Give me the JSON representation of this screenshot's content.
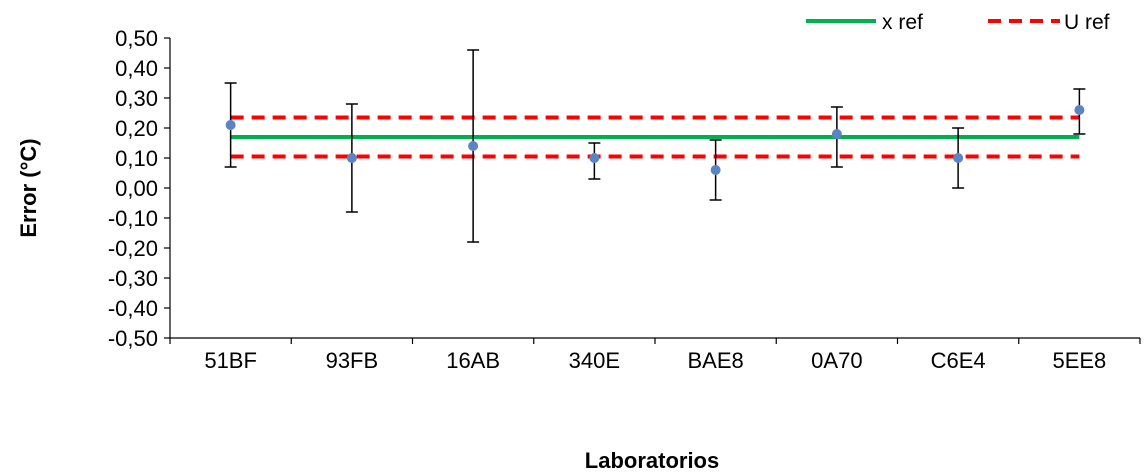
{
  "chart_data": {
    "type": "scatter",
    "title": "",
    "xlabel": "Laboratorios",
    "ylabel": "Error (°C)",
    "categories": [
      "51BF",
      "93FB",
      "16AB",
      "340E",
      "BAE8",
      "0A70",
      "C6E4",
      "5EE8"
    ],
    "ylim": [
      -0.5,
      0.5
    ],
    "yticks": [
      0.5,
      0.4,
      0.3,
      0.2,
      0.1,
      0.0,
      -0.1,
      -0.2,
      -0.3,
      -0.4,
      -0.5
    ],
    "ytick_labels": [
      "0,50",
      "0,40",
      "0,30",
      "0,20",
      "0,10",
      "0,00",
      "-0,10",
      "-0,20",
      "-0,30",
      "-0,40",
      "-0,50"
    ],
    "grid": false,
    "legend": "top-right",
    "series": [
      {
        "values": [
          0.21,
          0.1,
          0.14,
          0.1,
          0.06,
          0.18,
          0.1,
          0.26
        ],
        "err_low": [
          0.07,
          -0.08,
          -0.18,
          0.03,
          -0.04,
          0.07,
          0.0,
          0.18
        ],
        "err_high": [
          0.35,
          0.28,
          0.46,
          0.15,
          0.16,
          0.27,
          0.2,
          0.33
        ]
      }
    ],
    "reference_lines": [
      {
        "name": "x ref",
        "values": [
          0.17
        ],
        "color": "#00b050",
        "style": "solid"
      },
      {
        "name": "U ref",
        "values": [
          0.235,
          0.105
        ],
        "color": "#ff0000",
        "style": "dashed"
      }
    ]
  },
  "colors": {
    "marker": "#5b84c4",
    "errorbar": "#000000",
    "axis": "#000000",
    "x_ref": "#00b050",
    "u_ref": "#ff0000"
  }
}
